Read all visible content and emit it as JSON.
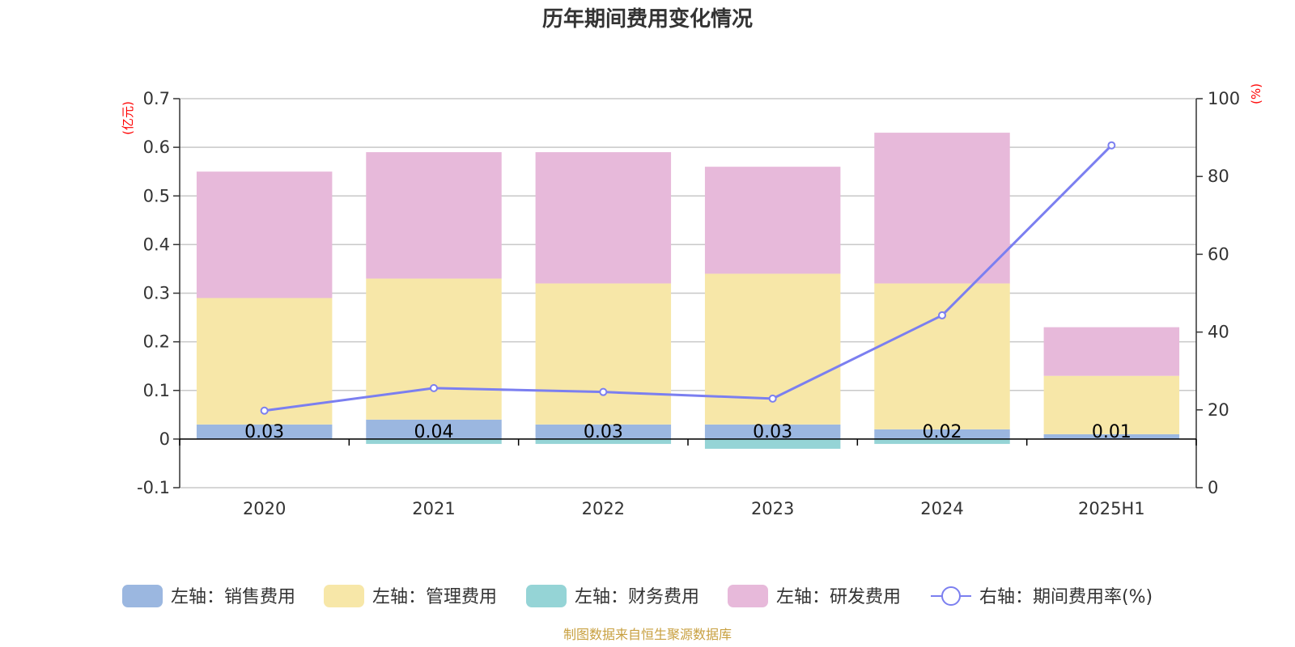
{
  "title": "历年期间费用变化情况",
  "left_unit": "(亿元)",
  "right_unit": "(%)",
  "source": "制图数据来自恒生聚源数据库",
  "colors": {
    "sales": "#9bb7e0",
    "admin": "#f7e7a8",
    "finance": "#95d4d6",
    "rd": "#e7b9da",
    "rate": "#7b7ff0",
    "axis": "#333333",
    "grid": "#c8c8c8"
  },
  "chart_data": {
    "type": "bar",
    "stacked": true,
    "title": "历年期间费用变化情况",
    "categories": [
      "2020",
      "2021",
      "2022",
      "2023",
      "2024",
      "2025H1"
    ],
    "y_left": {
      "unit": "(亿元)",
      "lim": [
        -0.1,
        0.7
      ],
      "ticks": [
        "-0.1",
        "0",
        "0.1",
        "0.2",
        "0.3",
        "0.4",
        "0.5",
        "0.6",
        "0.7"
      ]
    },
    "y_right": {
      "unit": "(%)",
      "lim": [
        0,
        100
      ],
      "ticks": [
        "0",
        "20",
        "40",
        "60",
        "80",
        "100"
      ]
    },
    "grid": true,
    "legend_position": "bottom",
    "series": [
      {
        "name": "左轴：销售费用",
        "axis": "left",
        "type": "bar",
        "values": [
          0.03,
          0.04,
          0.03,
          0.03,
          0.02,
          0.01
        ],
        "labels": [
          "0.03",
          "0.04",
          "0.03",
          "0.03",
          "0.02",
          "0.01"
        ]
      },
      {
        "name": "左轴：管理费用",
        "axis": "left",
        "type": "bar",
        "values": [
          0.26,
          0.29,
          0.29,
          0.31,
          0.3,
          0.12
        ]
      },
      {
        "name": "左轴：财务费用",
        "axis": "left",
        "type": "bar",
        "values": [
          0.0,
          -0.01,
          -0.01,
          -0.02,
          -0.01,
          0.0
        ]
      },
      {
        "name": "左轴：研发费用",
        "axis": "left",
        "type": "bar",
        "values": [
          0.26,
          0.26,
          0.27,
          0.22,
          0.31,
          0.1
        ]
      },
      {
        "name": "右轴：期间费用率(%)",
        "axis": "right",
        "type": "line",
        "values": [
          19.8,
          25.6,
          24.6,
          22.9,
          44.3,
          88.0
        ]
      }
    ]
  }
}
